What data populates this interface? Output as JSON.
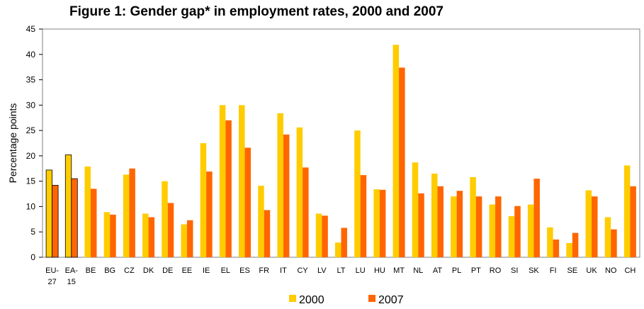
{
  "chart_data": {
    "type": "bar",
    "title": "Figure 1: Gender gap* in employment rates, 2000 and 2007",
    "ylabel": "Percentage points",
    "xlabel": "",
    "ylim": [
      0,
      45
    ],
    "yticks": [
      0,
      5,
      10,
      15,
      20,
      25,
      30,
      35,
      40,
      45
    ],
    "grid": false,
    "legend_position": "bottom",
    "categories": [
      "EU-27",
      "EA-15",
      "BE",
      "BG",
      "CZ",
      "DK",
      "DE",
      "EE",
      "IE",
      "EL",
      "ES",
      "FR",
      "IT",
      "CY",
      "LV",
      "LT",
      "LU",
      "HU",
      "MT",
      "NL",
      "AT",
      "PL",
      "PT",
      "RO",
      "SI",
      "SK",
      "FI",
      "SE",
      "UK",
      "NO",
      "CH"
    ],
    "category_label_lines": [
      [
        "EU-",
        "27"
      ],
      [
        "EA-",
        "15"
      ],
      [
        "BE"
      ],
      [
        "BG"
      ],
      [
        "CZ"
      ],
      [
        "DK"
      ],
      [
        "DE"
      ],
      [
        "EE"
      ],
      [
        "IE"
      ],
      [
        "EL"
      ],
      [
        "ES"
      ],
      [
        "FR"
      ],
      [
        "IT"
      ],
      [
        "CY"
      ],
      [
        "LV"
      ],
      [
        "LT"
      ],
      [
        "LU"
      ],
      [
        "HU"
      ],
      [
        "MT"
      ],
      [
        "NL"
      ],
      [
        "AT"
      ],
      [
        "PL"
      ],
      [
        "PT"
      ],
      [
        "RO"
      ],
      [
        "SI"
      ],
      [
        "SK"
      ],
      [
        "FI"
      ],
      [
        "SE"
      ],
      [
        "UK"
      ],
      [
        "NO"
      ],
      [
        "CH"
      ]
    ],
    "outlined_categories": [
      "EU-27",
      "EA-15"
    ],
    "series": [
      {
        "name": "2000",
        "color": "#FFCC00",
        "values": [
          17.2,
          20.2,
          17.9,
          8.9,
          16.3,
          8.6,
          15.0,
          6.5,
          22.5,
          30.0,
          30.0,
          14.1,
          28.4,
          25.6,
          8.6,
          2.9,
          25.0,
          13.4,
          41.9,
          18.7,
          16.5,
          12.0,
          15.8,
          10.4,
          8.1,
          10.4,
          5.9,
          2.8,
          13.2,
          7.9,
          18.1
        ]
      },
      {
        "name": "2007",
        "color": "#FF6600",
        "values": [
          14.2,
          15.5,
          13.5,
          8.4,
          17.5,
          7.9,
          10.7,
          7.3,
          16.9,
          27.0,
          21.6,
          9.3,
          24.2,
          17.7,
          8.2,
          5.8,
          16.2,
          13.3,
          37.4,
          12.6,
          14.0,
          13.1,
          12.0,
          12.0,
          10.1,
          15.5,
          3.5,
          4.8,
          12.0,
          5.5,
          14.0
        ]
      }
    ]
  }
}
